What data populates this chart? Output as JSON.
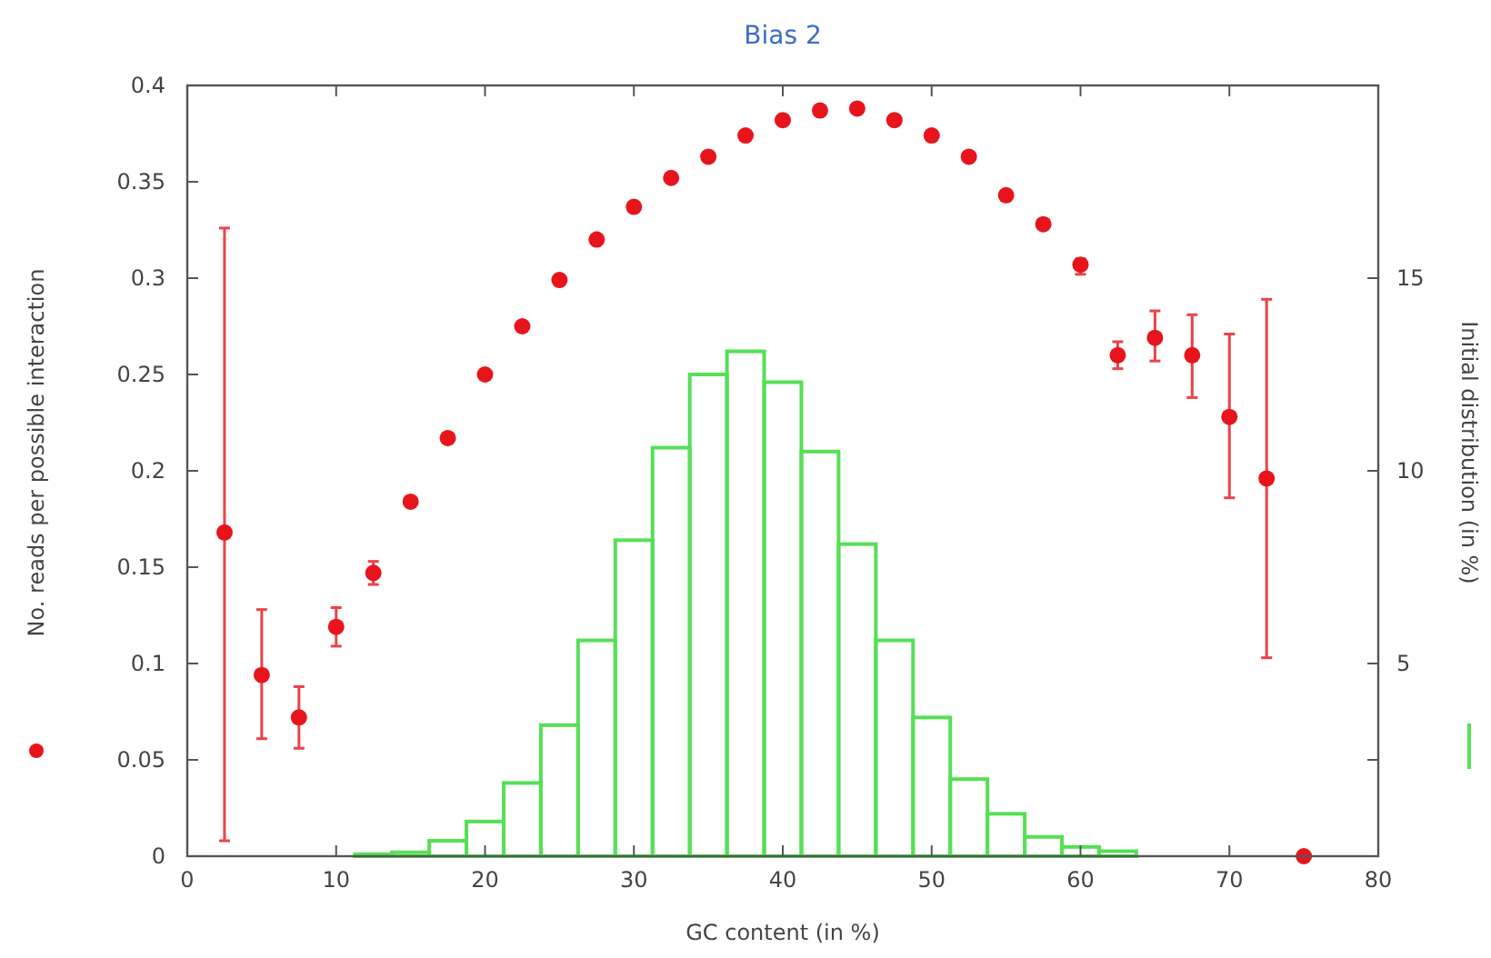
{
  "chart_data": {
    "type": "scatter",
    "title": "Bias 2",
    "xlabel": "GC content (in %)",
    "ylabel": "No. reads per possible interaction",
    "y2label": "Initial distribution (in %)",
    "xlim": [
      0,
      80
    ],
    "xticks": [
      0,
      10,
      20,
      30,
      40,
      50,
      60,
      70,
      80
    ],
    "ylim": [
      0,
      0.4
    ],
    "yticks": [
      0,
      0.05,
      0.1,
      0.15,
      0.2,
      0.25,
      0.3,
      0.35,
      0.4
    ],
    "y2lim": [
      0,
      20
    ],
    "y2ticks": [
      {
        "value": 2.5,
        "label": null
      },
      5,
      10,
      15
    ],
    "marker": "circle",
    "series": [
      {
        "color": "#e8141c",
        "x": [
          2.5,
          5,
          7.5,
          10,
          12.5,
          15,
          17.5,
          20,
          22.5,
          25,
          27.5,
          30,
          32.5,
          35,
          37.5,
          40,
          42.5,
          45,
          47.5,
          50,
          52.5,
          55,
          57.5,
          60,
          62.5,
          65,
          67.5,
          70,
          72.5,
          75
        ],
        "values": [
          0.168,
          0.094,
          0.072,
          0.119,
          0.147,
          0.184,
          0.217,
          0.25,
          0.275,
          0.299,
          0.32,
          0.337,
          0.352,
          0.363,
          0.374,
          0.382,
          0.387,
          0.388,
          0.382,
          0.374,
          0.363,
          0.343,
          0.328,
          0.307,
          0.26,
          0.269,
          0.26,
          0.228,
          0.196,
          0
        ],
        "errors": [
          [
            0.008,
            0.326
          ],
          [
            0.061,
            0.128
          ],
          [
            0.056,
            0.088
          ],
          [
            0.109,
            0.129
          ],
          [
            0.141,
            0.153
          ],
          null,
          null,
          null,
          null,
          null,
          null,
          null,
          null,
          null,
          null,
          null,
          null,
          null,
          null,
          null,
          null,
          null,
          null,
          [
            0.302,
            0.31
          ],
          [
            0.253,
            0.267
          ],
          [
            0.257,
            0.283
          ],
          [
            0.238,
            0.281
          ],
          [
            0.186,
            0.271
          ],
          [
            0.103,
            0.289
          ],
          null
        ]
      },
      {
        "type": "histogram",
        "axis": "y2",
        "color": "#55e055",
        "bins": [
          11.25,
          13.75,
          16.25,
          18.75,
          21.25,
          23.75,
          26.25,
          28.75,
          31.25,
          33.75,
          36.25,
          38.75,
          41.25,
          43.75,
          46.25,
          48.75,
          51.25,
          53.75,
          56.25,
          58.75,
          61.25,
          63.75
        ],
        "values": [
          0.05,
          0.1,
          0.4,
          0.9,
          1.9,
          3.4,
          5.6,
          8.2,
          10.6,
          12.5,
          13.1,
          12.3,
          10.5,
          8.1,
          5.6,
          3.6,
          2.0,
          1.1,
          0.5,
          0.24,
          0.13
        ]
      }
    ]
  }
}
